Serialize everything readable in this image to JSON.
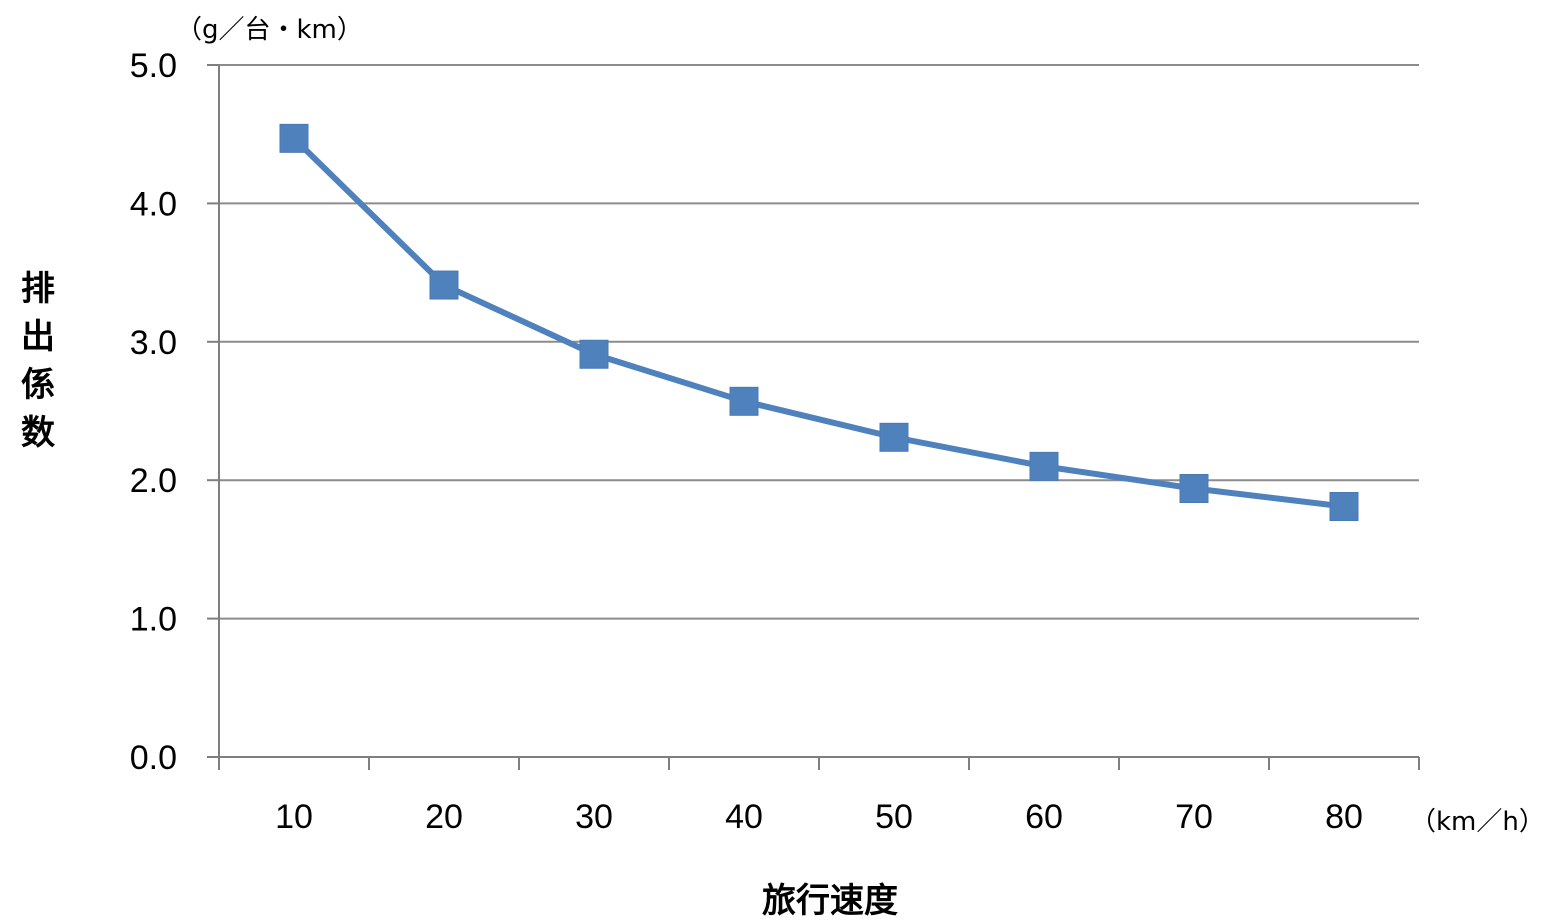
{
  "chart_data": {
    "type": "line",
    "x": [
      10,
      20,
      30,
      40,
      50,
      60,
      70,
      80
    ],
    "series": [
      {
        "values": [
          4.47,
          3.41,
          2.91,
          2.57,
          2.31,
          2.1,
          1.94,
          1.81
        ],
        "color": "#4f81bd",
        "marker": "square"
      }
    ],
    "xlabel": "旅行速度",
    "ylabel": "排出係数",
    "x_unit": "（km／h）",
    "y_unit": "（g／台・km）",
    "ylim": [
      0,
      5
    ],
    "yticks": [
      "0.0",
      "1.0",
      "2.0",
      "3.0",
      "4.0",
      "5.0"
    ],
    "xticks": [
      "10",
      "20",
      "30",
      "40",
      "50",
      "60",
      "70",
      "80"
    ],
    "grid": "horizontal",
    "legend": "none"
  }
}
